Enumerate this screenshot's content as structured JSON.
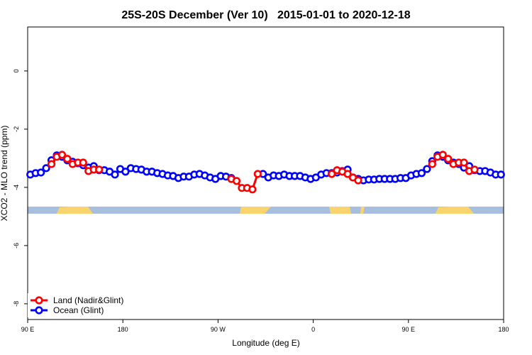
{
  "chart_data": {
    "type": "line",
    "title": "25S-20S December (Ver 10)   2015-01-01 to 2020-12-18",
    "xlabel": "Longitude (deg E)",
    "ylabel": "XCO2 - MLO trend (ppm)",
    "xlim": [
      90,
      540
    ],
    "xticks": [
      {
        "value": 90,
        "label": "90 E"
      },
      {
        "value": 180,
        "label": "180"
      },
      {
        "value": 270,
        "label": "90 W"
      },
      {
        "value": 360,
        "label": "0"
      },
      {
        "value": 450,
        "label": "90 E"
      },
      {
        "value": 540,
        "label": "180"
      }
    ],
    "ylim": [
      -8.54,
      1.51
    ],
    "yticks": [
      0,
      -2,
      -4,
      -6,
      -8
    ],
    "legend": "bottom-left",
    "series": [
      {
        "name": "Land (Nadir&Glint)",
        "color": "#ff0000",
        "x": [
          112.5,
          117.5,
          122.5,
          127.5,
          132.5,
          137.5,
          142.5,
          147.5,
          152.5,
          157.5,
          160,
          282.5,
          287.5,
          292.5,
          297.5,
          302.5,
          307.5,
          310,
          377.5,
          382.5,
          387.5,
          392.5,
          397.5,
          402.5,
          405,
          472.5,
          477.5,
          482.5,
          487.5,
          492.5,
          497.5,
          502.5,
          507.5,
          512.5
        ],
        "values": [
          -3.2,
          -2.95,
          -2.88,
          -3.02,
          -3.2,
          -3.15,
          -3.15,
          -3.44,
          -3.39,
          -3.39,
          null,
          -3.71,
          -3.78,
          -4.02,
          -4.02,
          -4.07,
          -3.54,
          null,
          -3.54,
          -3.41,
          -3.46,
          -3.54,
          -3.66,
          -3.76,
          null,
          -3.2,
          -2.95,
          -2.88,
          -3.02,
          -3.2,
          -3.15,
          -3.15,
          -3.44,
          -3.39
        ]
      },
      {
        "name": "Ocean (Glint)",
        "color": "#0000ff",
        "x": [
          92.5,
          97.5,
          102.5,
          107.5,
          112.5,
          117.5,
          122.5,
          127.5,
          132.5,
          137.5,
          142.5,
          147.5,
          152.5,
          157.5,
          162.5,
          167.5,
          172.5,
          177.5,
          182.5,
          187.5,
          192.5,
          197.5,
          202.5,
          207.5,
          212.5,
          217.5,
          222.5,
          227.5,
          232.5,
          237.5,
          242.5,
          247.5,
          252.5,
          257.5,
          262.5,
          267.5,
          272.5,
          277.5,
          282.5,
          287.5,
          292.5,
          297.5,
          302.5,
          307.5,
          312.5,
          317.5,
          322.5,
          327.5,
          332.5,
          337.5,
          342.5,
          347.5,
          352.5,
          357.5,
          362.5,
          367.5,
          372.5,
          377.5,
          382.5,
          387.5,
          392.5,
          397.5,
          402.5,
          407.5,
          412.5,
          417.5,
          422.5,
          427.5,
          432.5,
          437.5,
          442.5,
          447.5,
          452.5,
          457.5,
          462.5,
          467.5,
          472.5,
          477.5,
          482.5,
          487.5,
          492.5,
          497.5,
          502.5,
          507.5,
          512.5,
          517.5,
          522.5,
          527.5,
          532.5,
          537.5
        ],
        "values": [
          -3.56,
          -3.51,
          -3.49,
          -3.34,
          -3.07,
          -2.9,
          -2.95,
          -3.07,
          -3.12,
          -3.17,
          -3.24,
          -3.32,
          -3.27,
          -3.41,
          -3.41,
          -3.46,
          -3.56,
          -3.37,
          -3.46,
          -3.34,
          -3.37,
          -3.39,
          -3.46,
          -3.46,
          -3.51,
          -3.54,
          -3.59,
          -3.61,
          -3.68,
          -3.63,
          -3.63,
          -3.56,
          -3.54,
          -3.59,
          -3.66,
          -3.71,
          -3.61,
          -3.63,
          -3.68,
          null,
          null,
          null,
          null,
          null,
          -3.54,
          -3.66,
          -3.59,
          -3.61,
          -3.56,
          -3.61,
          -3.61,
          -3.61,
          -3.66,
          -3.71,
          -3.66,
          -3.56,
          -3.51,
          -3.51,
          -3.49,
          -3.44,
          -3.39,
          -3.66,
          -3.71,
          -3.76,
          -3.73,
          -3.73,
          -3.71,
          -3.71,
          -3.71,
          -3.71,
          -3.68,
          -3.68,
          -3.59,
          -3.54,
          -3.51,
          -3.37,
          -3.1,
          -2.9,
          -2.95,
          -3.07,
          -3.15,
          -3.2,
          -3.32,
          -3.27,
          -3.41,
          -3.44,
          -3.44,
          -3.49,
          -3.56,
          -3.56
        ]
      }
    ]
  }
}
